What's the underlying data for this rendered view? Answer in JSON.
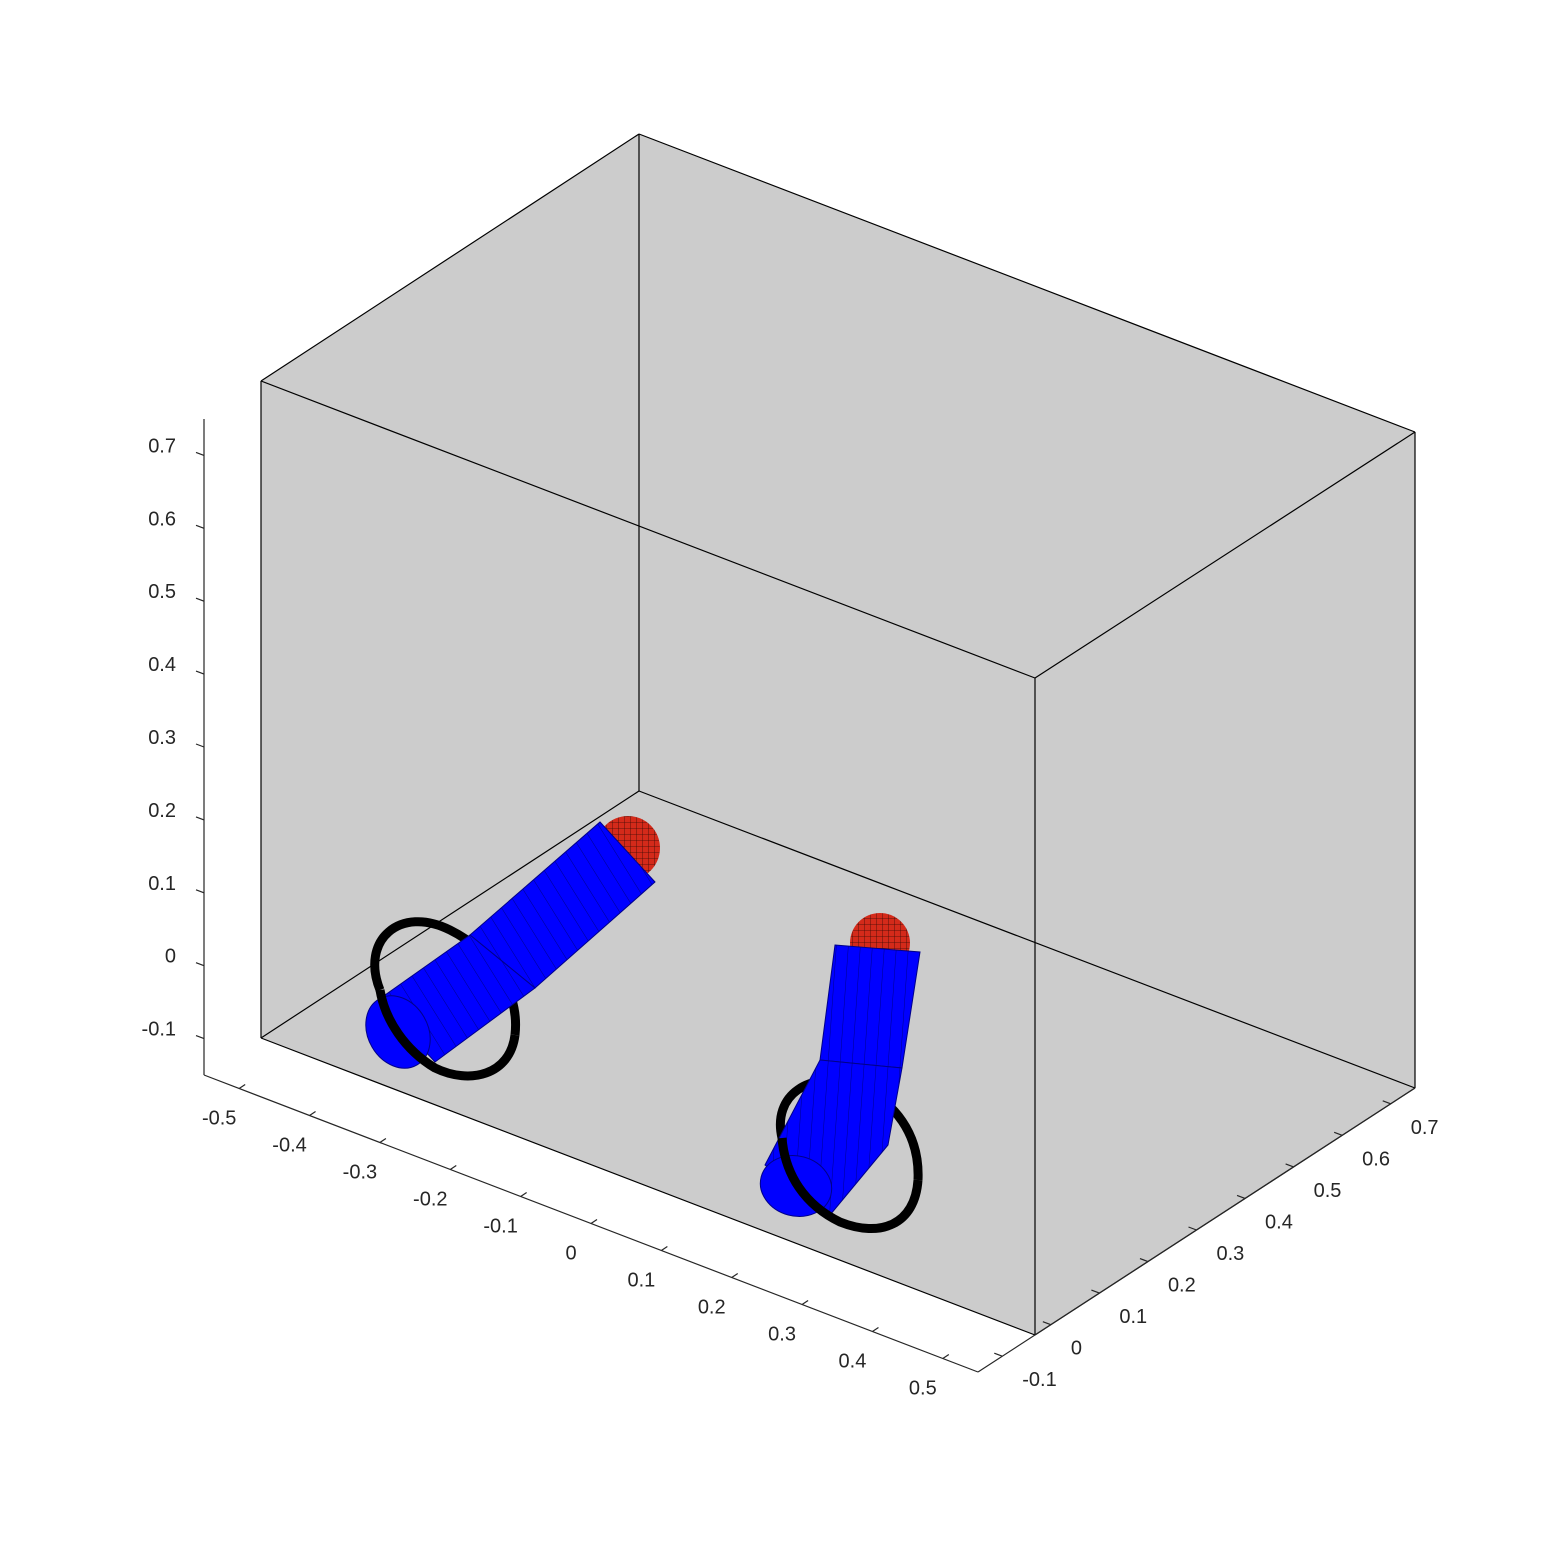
{
  "colors": {
    "background": "#ffffff",
    "pane": "#cccccc",
    "axis": "#262626",
    "box_edge": "#000000",
    "cylinder": "#0000ff",
    "sphere": "#d42a1a",
    "ring": "#000000"
  },
  "chart_data": {
    "type": "3d-surface-scene",
    "title": "",
    "xlabel": "",
    "ylabel": "",
    "zlabel": "",
    "grid": false,
    "box": true,
    "x": {
      "lim": [
        -0.55,
        0.55
      ],
      "ticks": [
        -0.5,
        -0.4,
        -0.3,
        -0.2,
        -0.1,
        0,
        0.1,
        0.2,
        0.3,
        0.4,
        0.5
      ],
      "tick_labels": [
        "-0.5",
        "-0.4",
        "-0.3",
        "-0.2",
        "-0.1",
        "0",
        "0.1",
        "0.2",
        "0.3",
        "0.4",
        "0.5"
      ]
    },
    "y": {
      "lim": [
        -0.15,
        0.75
      ],
      "ticks": [
        -0.1,
        0,
        0.1,
        0.2,
        0.3,
        0.4,
        0.5,
        0.6,
        0.7
      ],
      "tick_labels": [
        "-0.1",
        "0",
        "0.1",
        "0.2",
        "0.3",
        "0.4",
        "0.5",
        "0.6",
        "0.7"
      ]
    },
    "z": {
      "lim": [
        -0.15,
        0.75
      ],
      "ticks": [
        -0.1,
        0,
        0.1,
        0.2,
        0.3,
        0.4,
        0.5,
        0.6,
        0.7
      ],
      "tick_labels": [
        "-0.1",
        "0",
        "0.1",
        "0.2",
        "0.3",
        "0.4",
        "0.5",
        "0.6",
        "0.7"
      ]
    },
    "objects": [
      {
        "name": "left-arm",
        "shape": "cylinder-with-sphere-tip-and-ring",
        "cylinder_color": "#0000ff",
        "sphere_color": "#d42a1a",
        "ring_color": "#000000"
      },
      {
        "name": "right-arm",
        "shape": "cylinder-with-sphere-tip-and-ring",
        "cylinder_color": "#0000ff",
        "sphere_color": "#d42a1a",
        "ring_color": "#000000"
      }
    ]
  }
}
